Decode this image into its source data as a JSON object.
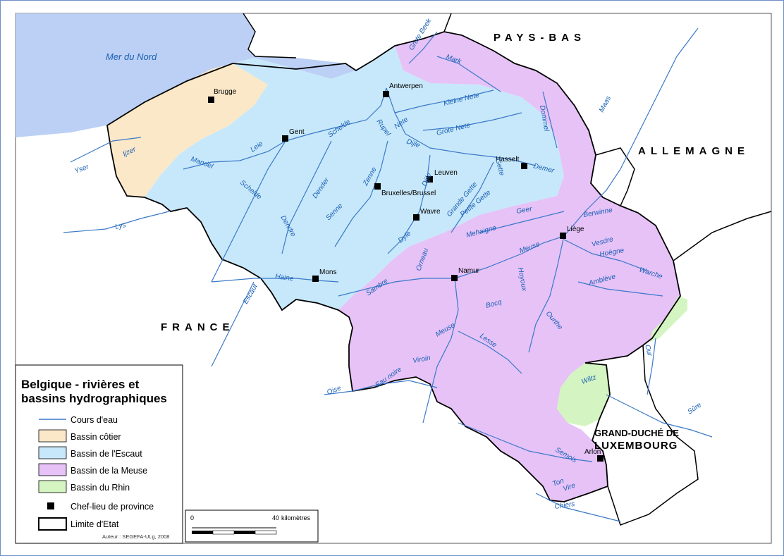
{
  "colors": {
    "sea": "#bcd0f5",
    "coastal": "#fbe8c8",
    "escaut": "#c7e8fa",
    "meuse": "#e6c2f7",
    "rhin": "#d4f5c2",
    "river": "#3b79c9",
    "border": "#000000"
  },
  "legend": {
    "title_line1": "Belgique - rivières et",
    "title_line2": "bassins hydrographiques",
    "items": [
      {
        "label": "Cours d'eau",
        "symbol": "line-icon"
      },
      {
        "label": "Bassin côtier",
        "symbol": "swatch-coastal"
      },
      {
        "label": "Bassin de l'Escaut",
        "symbol": "swatch-escaut"
      },
      {
        "label": "Bassin de la Meuse",
        "symbol": "swatch-meuse"
      },
      {
        "label": "Bassin du Rhin",
        "symbol": "swatch-rhin"
      },
      {
        "label": "Chef-lieu de province",
        "symbol": "square-icon"
      },
      {
        "label": "Limite d'Etat",
        "symbol": "boundary-icon"
      }
    ],
    "credit": "Auteur : SEGEFA-ULg, 2008"
  },
  "scale": {
    "zero": "0",
    "max": "40",
    "unit": "kilomètres"
  },
  "labels": {
    "sea": "Mer du Nord",
    "countries": {
      "netherlands": "PAYS-BAS",
      "germany": "ALLEMAGNE",
      "france": "FRANCE",
      "luxembourg_line1": "GRAND-DUCHÉ DE",
      "luxembourg_line2": "LUXEMBOURG"
    },
    "cities": {
      "brugge": "Brugge",
      "antwerpen": "Antwerpen",
      "gent": "Gent",
      "hasselt": "Hasselt",
      "leuven": "Leuven",
      "bruxelles": "Bruxelles/Brussel",
      "wavre": "Wavre",
      "liege": "Liège",
      "mons": "Mons",
      "namur": "Namur",
      "arlon": "Arlon"
    },
    "rivers": {
      "grote_beek": "Grote Beek",
      "mark": "Mark",
      "maas": "Maas",
      "dommel": "Dommel",
      "kleine_nete": "Kleine Nete",
      "grote_nete": "Grote Nete",
      "nete": "Nete",
      "rupel": "Rupel",
      "schelde_n": "Schelde",
      "dijle_n": "Dijle",
      "demer": "Demer",
      "gette": "Gette",
      "ijzer": "Ijzer",
      "yser": "Yser",
      "mandel": "Mandel",
      "leie": "Leie",
      "schelde_w": "Schelde",
      "dender_e": "Dender",
      "dender_s": "Dendre",
      "zenne": "Zenne",
      "senne": "Senne",
      "dijle_c": "Dijle",
      "grande_gette": "Grande Gette",
      "petite_gette": "Petite Gette",
      "dyle": "Dyle",
      "lys": "Lys",
      "geer": "Geer",
      "berwinne": "Berwinne",
      "vesdre": "Vesdre",
      "hoegne": "Hoëgne",
      "mehaigne": "Mehaigne",
      "meuse_ne": "Meuse",
      "warche": "Warche",
      "ambleve": "Amblève",
      "orneau": "Orneau",
      "hoyoux": "Hoyoux",
      "haine": "Haine",
      "escaut": "Escaut",
      "sambre": "Sambre",
      "bocq": "Bocq",
      "ourthe": "Ourthe",
      "meuse_s": "Meuse",
      "lesse": "Lesse",
      "our": "Our",
      "viroin": "Viroin",
      "eau_noire": "Eau noire",
      "oise": "Oise",
      "wiltz": "Wiltz",
      "sure": "Sûre",
      "semois": "Semois",
      "ton": "Ton",
      "vire": "Vire",
      "chiers": "Chiers"
    }
  }
}
